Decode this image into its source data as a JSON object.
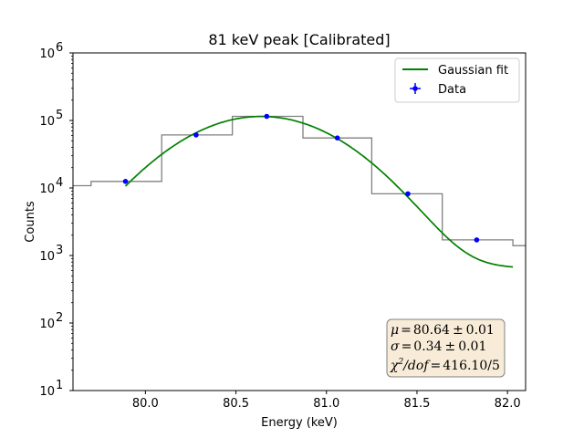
{
  "chart_data": {
    "type": "line",
    "title": "81 keV peak [Calibrated]",
    "xlabel": "Energy (keV)",
    "ylabel": "Counts",
    "xlim": [
      79.6,
      82.1
    ],
    "ylim": [
      10,
      1000000
    ],
    "yscale": "log",
    "grid": false,
    "legend_position": "top-right",
    "xticks": [
      80.0,
      80.5,
      81.0,
      81.5,
      82.0
    ],
    "xtick_labels": [
      "80.0",
      "80.5",
      "81.0",
      "81.5",
      "82.0"
    ],
    "yticks": [
      10,
      100,
      1000,
      10000,
      100000,
      1000000
    ],
    "ytick_labels": [
      {
        "base": "10",
        "exp": "1"
      },
      {
        "base": "10",
        "exp": "2"
      },
      {
        "base": "10",
        "exp": "3"
      },
      {
        "base": "10",
        "exp": "4"
      },
      {
        "base": "10",
        "exp": "5"
      },
      {
        "base": "10",
        "exp": "6"
      }
    ],
    "histogram": {
      "color": "#808080",
      "edges": [
        79.5,
        79.7,
        80.09,
        80.48,
        80.87,
        81.25,
        81.64,
        82.03,
        82.42
      ],
      "values": [
        10800,
        12500,
        61000,
        115000,
        55000,
        8200,
        1700,
        1400
      ]
    },
    "series": [
      {
        "name": "Data",
        "kind": "errorbar",
        "color": "#0000ff",
        "x": [
          79.89,
          80.28,
          80.67,
          81.06,
          81.45,
          81.83
        ],
        "y": [
          12500,
          61000,
          115000,
          55000,
          8200,
          1700
        ]
      },
      {
        "name": "Gaussian fit",
        "kind": "line",
        "color": "#008000",
        "mu": 80.64,
        "sigma": 0.34,
        "amplitude": 114000,
        "background": 650,
        "x_range": [
          79.89,
          82.03
        ]
      }
    ],
    "annotation": {
      "mu_label": "μ",
      "mu_value": "80.64",
      "mu_err": "0.01",
      "sigma_label": "σ",
      "sigma_value": "0.34",
      "sigma_err": "0.01",
      "chi_label": "χ",
      "chi_exp": "2",
      "chi_dof": "/dof",
      "chi_value": "416.10/5",
      "equals": "=",
      "pm": "±",
      "box_fill": "#f8ecd8",
      "box_edge": "#808080"
    }
  }
}
